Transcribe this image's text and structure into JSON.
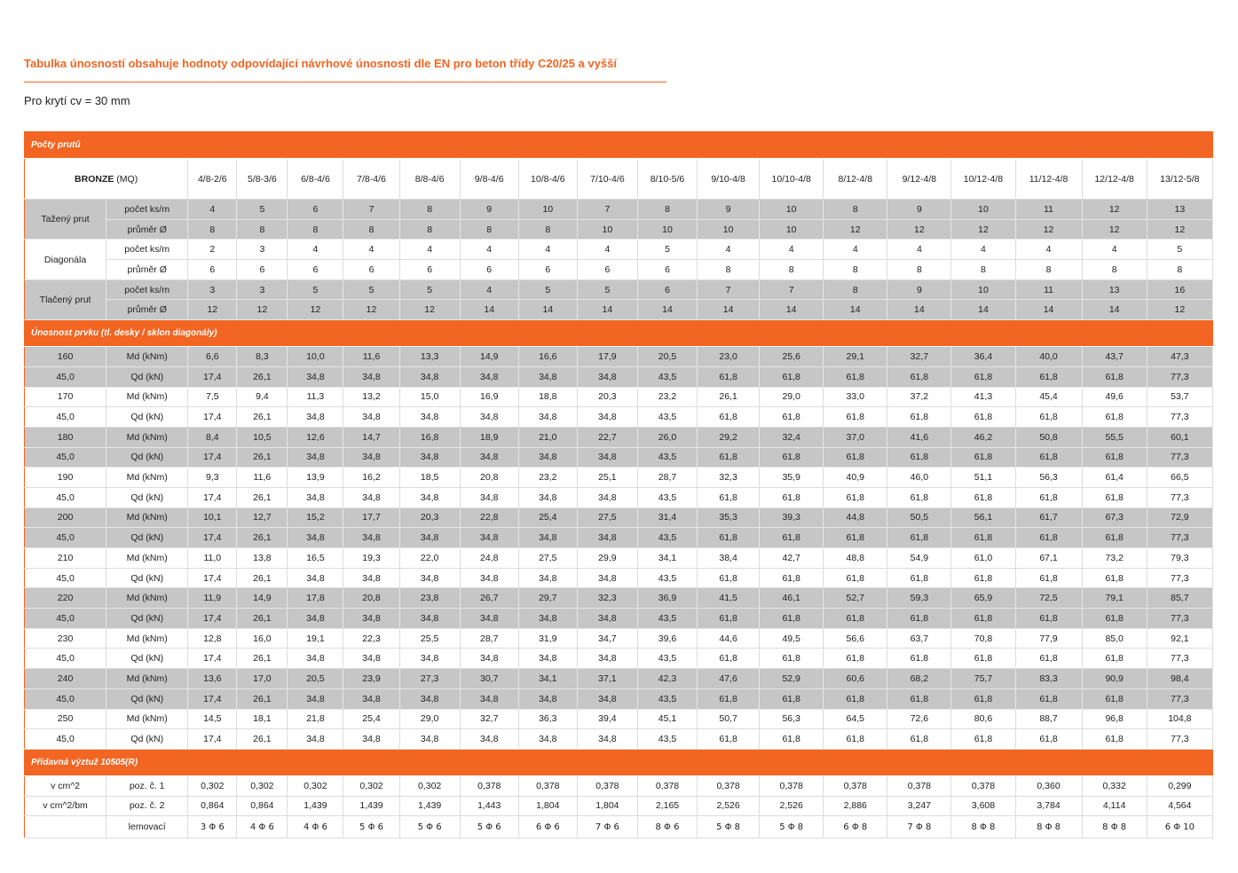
{
  "title": "Tabulka únosností obsahuje hodnoty odpovídající návrhové únosnosti dle EN pro beton třídy C20/25 a vyšší",
  "subtitle": "Pro krytí cv = 30 mm",
  "colors": {
    "accent": "#f26522",
    "row_gray": "#c6c6c6"
  },
  "section1": "Počty prutů",
  "header": {
    "brand": "BRONZE",
    "brand_suffix": "(MQ)",
    "columns": [
      "4/8-2/6",
      "5/8-3/6",
      "6/8-4/6",
      "7/8-4/6",
      "8/8-4/6",
      "9/8-4/6",
      "10/8-4/6",
      "7/10-4/6",
      "8/10-5/6",
      "9/10-4/8",
      "10/10-4/8",
      "8/12-4/8",
      "9/12-4/8",
      "10/12-4/8",
      "11/12-4/8",
      "12/12-4/8",
      "13/12-5/8"
    ]
  },
  "bars": [
    {
      "group": "Tažený prut",
      "rows": [
        {
          "label": "počet ks/m",
          "values": [
            "4",
            "5",
            "6",
            "7",
            "8",
            "9",
            "10",
            "7",
            "8",
            "9",
            "10",
            "8",
            "9",
            "10",
            "11",
            "12",
            "13"
          ]
        },
        {
          "label": "průměr Ø",
          "values": [
            "8",
            "8",
            "8",
            "8",
            "8",
            "8",
            "8",
            "10",
            "10",
            "10",
            "10",
            "12",
            "12",
            "12",
            "12",
            "12",
            "12"
          ]
        }
      ]
    },
    {
      "group": "Diagonála",
      "rows": [
        {
          "label": "počet ks/m",
          "values": [
            "2",
            "3",
            "4",
            "4",
            "4",
            "4",
            "4",
            "4",
            "5",
            "4",
            "4",
            "4",
            "4",
            "4",
            "4",
            "4",
            "5"
          ]
        },
        {
          "label": "průměr Ø",
          "values": [
            "6",
            "6",
            "6",
            "6",
            "6",
            "6",
            "6",
            "6",
            "6",
            "8",
            "8",
            "8",
            "8",
            "8",
            "8",
            "8",
            "8"
          ]
        }
      ]
    },
    {
      "group": "Tlačený prut",
      "rows": [
        {
          "label": "počet ks/m",
          "values": [
            "3",
            "3",
            "5",
            "5",
            "5",
            "4",
            "5",
            "5",
            "6",
            "7",
            "7",
            "8",
            "9",
            "10",
            "11",
            "13",
            "16"
          ]
        },
        {
          "label": "průměr Ø",
          "values": [
            "12",
            "12",
            "12",
            "12",
            "12",
            "14",
            "14",
            "14",
            "14",
            "14",
            "14",
            "14",
            "14",
            "14",
            "14",
            "14",
            "12"
          ]
        }
      ]
    }
  ],
  "section2": "Únosnost prvku (tl. desky / sklon diagonály)",
  "capacity": [
    {
      "thickness": "160",
      "angle": "45,0",
      "md_label": "Md   (kNm)",
      "qd_label": "Qd      (kN)",
      "md": [
        "6,6",
        "8,3",
        "10,0",
        "11,6",
        "13,3",
        "14,9",
        "16,6",
        "17,9",
        "20,5",
        "23,0",
        "25,6",
        "29,1",
        "32,7",
        "36,4",
        "40,0",
        "43,7",
        "47,3"
      ],
      "qd": [
        "17,4",
        "26,1",
        "34,8",
        "34,8",
        "34,8",
        "34,8",
        "34,8",
        "34,8",
        "43,5",
        "61,8",
        "61,8",
        "61,8",
        "61,8",
        "61,8",
        "61,8",
        "61,8",
        "77,3"
      ]
    },
    {
      "thickness": "170",
      "angle": "45,0",
      "md_label": "Md   (kNm)",
      "qd_label": "Qd      (kN)",
      "md": [
        "7,5",
        "9,4",
        "11,3",
        "13,2",
        "15,0",
        "16,9",
        "18,8",
        "20,3",
        "23,2",
        "26,1",
        "29,0",
        "33,0",
        "37,2",
        "41,3",
        "45,4",
        "49,6",
        "53,7"
      ],
      "qd": [
        "17,4",
        "26,1",
        "34,8",
        "34,8",
        "34,8",
        "34,8",
        "34,8",
        "34,8",
        "43,5",
        "61,8",
        "61,8",
        "61,8",
        "61,8",
        "61,8",
        "61,8",
        "61,8",
        "77,3"
      ]
    },
    {
      "thickness": "180",
      "angle": "45,0",
      "md_label": "Md   (kNm)",
      "qd_label": "Qd      (kN)",
      "md": [
        "8,4",
        "10,5",
        "12,6",
        "14,7",
        "16,8",
        "18,9",
        "21,0",
        "22,7",
        "26,0",
        "29,2",
        "32,4",
        "37,0",
        "41,6",
        "46,2",
        "50,8",
        "55,5",
        "60,1"
      ],
      "qd": [
        "17,4",
        "26,1",
        "34,8",
        "34,8",
        "34,8",
        "34,8",
        "34,8",
        "34,8",
        "43,5",
        "61,8",
        "61,8",
        "61,8",
        "61,8",
        "61,8",
        "61,8",
        "61,8",
        "77,3"
      ]
    },
    {
      "thickness": "190",
      "angle": "45,0",
      "md_label": "Md   (kNm)",
      "qd_label": "Qd      (kN)",
      "md": [
        "9,3",
        "11,6",
        "13,9",
        "16,2",
        "18,5",
        "20,8",
        "23,2",
        "25,1",
        "28,7",
        "32,3",
        "35,9",
        "40,9",
        "46,0",
        "51,1",
        "56,3",
        "61,4",
        "66,5"
      ],
      "qd": [
        "17,4",
        "26,1",
        "34,8",
        "34,8",
        "34,8",
        "34,8",
        "34,8",
        "34,8",
        "43,5",
        "61,8",
        "61,8",
        "61,8",
        "61,8",
        "61,8",
        "61,8",
        "61,8",
        "77,3"
      ]
    },
    {
      "thickness": "200",
      "angle": "45,0",
      "md_label": "Md   (kNm)",
      "qd_label": "Qd      (kN)",
      "md": [
        "10,1",
        "12,7",
        "15,2",
        "17,7",
        "20,3",
        "22,8",
        "25,4",
        "27,5",
        "31,4",
        "35,3",
        "39,3",
        "44,8",
        "50,5",
        "56,1",
        "61,7",
        "67,3",
        "72,9"
      ],
      "qd": [
        "17,4",
        "26,1",
        "34,8",
        "34,8",
        "34,8",
        "34,8",
        "34,8",
        "34,8",
        "43,5",
        "61,8",
        "61,8",
        "61,8",
        "61,8",
        "61,8",
        "61,8",
        "61,8",
        "77,3"
      ]
    },
    {
      "thickness": "210",
      "angle": "45,0",
      "md_label": "Md   (kNm)",
      "qd_label": "Qd      (kN)",
      "md": [
        "11,0",
        "13,8",
        "16,5",
        "19,3",
        "22,0",
        "24,8",
        "27,5",
        "29,9",
        "34,1",
        "38,4",
        "42,7",
        "48,8",
        "54,9",
        "61,0",
        "67,1",
        "73,2",
        "79,3"
      ],
      "qd": [
        "17,4",
        "26,1",
        "34,8",
        "34,8",
        "34,8",
        "34,8",
        "34,8",
        "34,8",
        "43,5",
        "61,8",
        "61,8",
        "61,8",
        "61,8",
        "61,8",
        "61,8",
        "61,8",
        "77,3"
      ]
    },
    {
      "thickness": "220",
      "angle": "45,0",
      "md_label": "Md   (kNm)",
      "qd_label": "Qd      (kN)",
      "md": [
        "11,9",
        "14,9",
        "17,8",
        "20,8",
        "23,8",
        "26,7",
        "29,7",
        "32,3",
        "36,9",
        "41,5",
        "46,1",
        "52,7",
        "59,3",
        "65,9",
        "72,5",
        "79,1",
        "85,7"
      ],
      "qd": [
        "17,4",
        "26,1",
        "34,8",
        "34,8",
        "34,8",
        "34,8",
        "34,8",
        "34,8",
        "43,5",
        "61,8",
        "61,8",
        "61,8",
        "61,8",
        "61,8",
        "61,8",
        "61,8",
        "77,3"
      ]
    },
    {
      "thickness": "230",
      "angle": "45,0",
      "md_label": "Md   (kNm)",
      "qd_label": "Qd      (kN)",
      "md": [
        "12,8",
        "16,0",
        "19,1",
        "22,3",
        "25,5",
        "28,7",
        "31,9",
        "34,7",
        "39,6",
        "44,6",
        "49,5",
        "56,6",
        "63,7",
        "70,8",
        "77,9",
        "85,0",
        "92,1"
      ],
      "qd": [
        "17,4",
        "26,1",
        "34,8",
        "34,8",
        "34,8",
        "34,8",
        "34,8",
        "34,8",
        "43,5",
        "61,8",
        "61,8",
        "61,8",
        "61,8",
        "61,8",
        "61,8",
        "61,8",
        "77,3"
      ]
    },
    {
      "thickness": "240",
      "angle": "45,0",
      "md_label": "Md   (kNm)",
      "qd_label": "Qd      (kN)",
      "md": [
        "13,6",
        "17,0",
        "20,5",
        "23,9",
        "27,3",
        "30,7",
        "34,1",
        "37,1",
        "42,3",
        "47,6",
        "52,9",
        "60,6",
        "68,2",
        "75,7",
        "83,3",
        "90,9",
        "98,4"
      ],
      "qd": [
        "17,4",
        "26,1",
        "34,8",
        "34,8",
        "34,8",
        "34,8",
        "34,8",
        "34,8",
        "43,5",
        "61,8",
        "61,8",
        "61,8",
        "61,8",
        "61,8",
        "61,8",
        "61,8",
        "77,3"
      ]
    },
    {
      "thickness": "250",
      "angle": "45,0",
      "md_label": "Md   (kNm)",
      "qd_label": "Qd      (kN)",
      "md": [
        "14,5",
        "18,1",
        "21,8",
        "25,4",
        "29,0",
        "32,7",
        "36,3",
        "39,4",
        "45,1",
        "50,7",
        "56,3",
        "64,5",
        "72,6",
        "80,6",
        "88,7",
        "96,8",
        "104,8"
      ],
      "qd": [
        "17,4",
        "26,1",
        "34,8",
        "34,8",
        "34,8",
        "34,8",
        "34,8",
        "34,8",
        "43,5",
        "61,8",
        "61,8",
        "61,8",
        "61,8",
        "61,8",
        "61,8",
        "61,8",
        "77,3"
      ]
    }
  ],
  "section3": "Přídavná výztuž 10505(R)",
  "additional": [
    {
      "unit": "v cm^2",
      "label": "poz. č. 1",
      "values": [
        "0,302",
        "0,302",
        "0,302",
        "0,302",
        "0,302",
        "0,378",
        "0,378",
        "0,378",
        "0,378",
        "0,378",
        "0,378",
        "0,378",
        "0,378",
        "0,378",
        "0,360",
        "0,332",
        "0,299"
      ]
    },
    {
      "unit": "v cm^2/bm",
      "label": "poz. č. 2",
      "values": [
        "0,864",
        "0,864",
        "1,439",
        "1,439",
        "1,439",
        "1,443",
        "1,804",
        "1,804",
        "2,165",
        "2,526",
        "2,526",
        "2,886",
        "3,247",
        "3,608",
        "3,784",
        "4,114",
        "4,564"
      ]
    },
    {
      "unit": "",
      "label": "lemovací",
      "values": [
        "3 Φ 6",
        "4 Φ 6",
        "4 Φ 6",
        "5 Φ 6",
        "5 Φ 6",
        "5 Φ 6",
        "6 Φ 6",
        "7 Φ 6",
        "8 Φ 6",
        "5 Φ 8",
        "5 Φ 8",
        "6 Φ 8",
        "7 Φ 8",
        "8 Φ 8",
        "8  Φ 8",
        "8 Φ 8",
        "6 Φ 10"
      ]
    }
  ]
}
